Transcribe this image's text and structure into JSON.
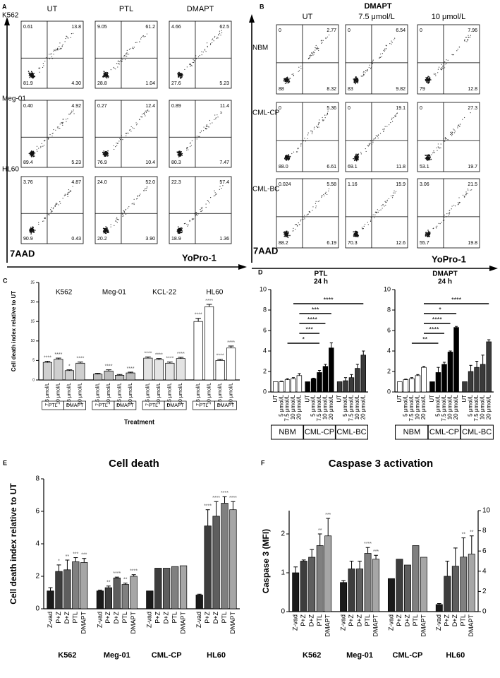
{
  "panel_labels": [
    "A",
    "B",
    "C",
    "D",
    "E",
    "F"
  ],
  "panels": {
    "A": {
      "columns": [
        "UT",
        "PTL",
        "DMAPT"
      ],
      "y_label": "7AAD",
      "x_label": "YoPro-1",
      "rows": [
        {
          "name": "K562",
          "plots": [
            {
              "ul": "0.61",
              "ur": "13.8",
              "ll": "81.9",
              "lr": "4.30"
            },
            {
              "ul": "9.05",
              "ur": "61.2",
              "ll": "28.8",
              "lr": "1.04"
            },
            {
              "ul": "4.66",
              "ur": "62.5",
              "ll": "27.6",
              "lr": "5.23"
            }
          ]
        },
        {
          "name": "Meg-01",
          "plots": [
            {
              "ul": "0.40",
              "ur": "4.92",
              "ll": "89.4",
              "lr": "5.23"
            },
            {
              "ul": "0.27",
              "ur": "12.4",
              "ll": "76.9",
              "lr": "10.4"
            },
            {
              "ul": "0.89",
              "ur": "11.4",
              "ll": "80.3",
              "lr": "7.47"
            }
          ]
        },
        {
          "name": "HL60",
          "plots": [
            {
              "ul": "3.76",
              "ur": "4.87",
              "ll": "90.9",
              "lr": "0.43"
            },
            {
              "ul": "24.0",
              "ur": "52.0",
              "ll": "20.2",
              "lr": "3.90"
            },
            {
              "ul": "22.3",
              "ur": "57.4",
              "ll": "18.9",
              "lr": "1.36"
            }
          ]
        }
      ]
    },
    "B": {
      "title": "DMAPT",
      "columns": [
        "UT",
        "7.5 μmol/L",
        "10 μmol/L"
      ],
      "y_label": "7AAD",
      "x_label": "YoPro-1",
      "rows": [
        {
          "name": "NBM",
          "plots": [
            {
              "ul": "0",
              "ur": "2.77",
              "ll": "88",
              "lr": "8.32"
            },
            {
              "ul": "0",
              "ur": "6.54",
              "ll": "83",
              "lr": "9.82"
            },
            {
              "ul": "0",
              "ur": "7.96",
              "ll": "79",
              "lr": "12.8"
            }
          ]
        },
        {
          "name": "CML-CP",
          "plots": [
            {
              "ul": "0",
              "ur": "5.36",
              "ll": "88.0",
              "lr": "6.61"
            },
            {
              "ul": "0",
              "ur": "19.1",
              "ll": "69.1",
              "lr": "11.8"
            },
            {
              "ul": "0",
              "ur": "27.3",
              "ll": "53.1",
              "lr": "19.7"
            }
          ]
        },
        {
          "name": "CML-BC",
          "plots": [
            {
              "ul": "0.024",
              "ur": "5.58",
              "ll": "88.2",
              "lr": "6.19"
            },
            {
              "ul": "1.16",
              "ur": "15.9",
              "ll": "70.3",
              "lr": "12.6"
            },
            {
              "ul": "3.06",
              "ur": "21.5",
              "ll": "55.7",
              "lr": "19.8"
            }
          ]
        }
      ]
    }
  },
  "chart_data": [
    {
      "type": "bar",
      "ylabel": "Cell death index relative to UT",
      "xlabel": "Treatment",
      "ylim": [
        0,
        25
      ],
      "yticks": [
        0,
        5,
        10,
        15,
        20,
        25
      ],
      "categories": [
        "7.5 μmol/L",
        "10 μmol/L",
        "7.5 μmol/L",
        "10 μmol/L"
      ],
      "subgroups": [
        "PTL",
        "DMAPT"
      ],
      "groups": [
        {
          "name": "K562",
          "color": "#cfcfcf",
          "values": [
            4.5,
            5.3,
            2.4,
            4.3
          ],
          "errors": [
            0.3,
            0.3,
            0.2,
            0.3
          ],
          "significance": [
            "****",
            "****",
            "*",
            "****"
          ]
        },
        {
          "name": "Meg-01",
          "color": "#bdbdbd",
          "values": [
            1.5,
            2.3,
            1.2,
            1.8
          ],
          "errors": [
            0.2,
            0.3,
            0.2,
            0.2
          ],
          "significance": [
            null,
            "****",
            null,
            "****"
          ]
        },
        {
          "name": "KCL-22",
          "color": "#e3e3e3",
          "values": [
            5.6,
            5.2,
            4.3,
            5.5
          ],
          "errors": [
            0.3,
            0.3,
            0.3,
            0.3
          ],
          "significance": [
            "****",
            "****",
            "****",
            "****"
          ]
        },
        {
          "name": "HL60",
          "color": "#ffffff",
          "values": [
            15,
            18.8,
            5,
            8.2
          ],
          "errors": [
            0.8,
            0.6,
            0.3,
            0.5
          ],
          "significance": [
            "****",
            "****",
            "****",
            "****"
          ]
        }
      ]
    },
    {
      "type": "bar",
      "title": "PTL",
      "subtitle": "24 h",
      "ylim": [
        0,
        10
      ],
      "yticks": [
        0,
        2,
        4,
        6,
        8,
        10
      ],
      "categories": [
        "UT",
        "5 μmol/L",
        "7.5 μmol/L",
        "10 μmol/L",
        "20 μmol/L"
      ],
      "comparisons": [
        "****",
        "***",
        "****",
        "***",
        "*"
      ],
      "groups": [
        {
          "name": "NBM",
          "color": "#ffffff",
          "values": [
            1,
            1,
            1.2,
            1.3,
            1.6
          ],
          "errors": [
            0,
            0.05,
            0.1,
            0.1,
            0.2
          ]
        },
        {
          "name": "CML-CP",
          "color": "#000000",
          "values": [
            1,
            1.3,
            1.9,
            2.5,
            4.3
          ],
          "errors": [
            0,
            0.05,
            0.2,
            0.2,
            0.5
          ]
        },
        {
          "name": "CML-BC",
          "color": "#3a3a3a",
          "values": [
            1,
            1.1,
            1.4,
            2.3,
            3.6
          ],
          "errors": [
            0,
            0.3,
            0.3,
            0.4,
            0.4
          ]
        }
      ]
    },
    {
      "type": "bar",
      "title": "DMAPT",
      "subtitle": "24 h",
      "ylim": [
        0,
        10
      ],
      "yticks": [
        0,
        2,
        4,
        6,
        8,
        10
      ],
      "categories": [
        "UT",
        "5 μmol/L",
        "7.5 μmol/L",
        "10 μmol/L",
        "20 μmol/L"
      ],
      "comparisons": [
        "****",
        "*",
        "****",
        "****",
        "**"
      ],
      "groups": [
        {
          "name": "NBM",
          "color": "#ffffff",
          "values": [
            1,
            1.2,
            1.3,
            1.6,
            2.4
          ],
          "errors": [
            0,
            0.05,
            0.1,
            0.1,
            0.1
          ]
        },
        {
          "name": "CML-CP",
          "color": "#000000",
          "values": [
            1,
            1.9,
            2.7,
            3.9,
            6.3
          ],
          "errors": [
            0,
            0.5,
            0.2,
            0.1,
            0.1
          ]
        },
        {
          "name": "CML-BC",
          "color": "#3a3a3a",
          "values": [
            1,
            2,
            2.4,
            2.7,
            4.9
          ],
          "errors": [
            0,
            0.6,
            0.6,
            0.9,
            0.2
          ]
        }
      ]
    },
    {
      "type": "bar",
      "title": "Cell death",
      "ylabel": "Cell death index relative to UT",
      "ylim": [
        0,
        8
      ],
      "yticks": [
        0,
        2,
        4,
        6,
        8
      ],
      "categories": [
        "Z-vad",
        "P+Z",
        "D+Z",
        "PTL",
        "DMAPT"
      ],
      "colors": [
        "#1a1a1a",
        "#3d3d3d",
        "#5e5e5e",
        "#808080",
        "#a6a6a6"
      ],
      "groups": [
        {
          "name": "K562",
          "values": [
            1.1,
            2.3,
            2.4,
            2.9,
            2.85
          ],
          "errors": [
            0.2,
            0.4,
            0.6,
            0.25,
            0.25
          ],
          "significance": [
            null,
            "*",
            "**",
            "***",
            "***"
          ]
        },
        {
          "name": "Meg-01",
          "values": [
            1.1,
            1.3,
            1.9,
            1.5,
            2.0
          ],
          "errors": [
            0.05,
            0.1,
            0.05,
            0.08,
            0.1
          ],
          "significance": [
            null,
            "**",
            "****",
            "**",
            "****"
          ]
        },
        {
          "name": "CML-CP",
          "values": [
            1.1,
            2.5,
            2.5,
            2.6,
            2.65
          ]
        },
        {
          "name": "HL60",
          "values": [
            0.85,
            5.1,
            5.7,
            6.5,
            6.1
          ],
          "errors": [
            0.05,
            1.0,
            0.9,
            0.4,
            0.5
          ],
          "significance": [
            null,
            "****",
            "****",
            "****",
            "****"
          ]
        }
      ]
    },
    {
      "type": "bar",
      "title": "Caspase 3 activation",
      "ylabel": "Caspase 3 (MFI)",
      "ylim": [
        0,
        2.6
      ],
      "yticks": [
        0,
        1,
        2
      ],
      "y2lim": [
        0,
        10
      ],
      "y2ticks": [
        0,
        2,
        4,
        6,
        8,
        10
      ],
      "categories": [
        "Z-vad",
        "P+Z",
        "D+Z",
        "PTL",
        "DMAPT"
      ],
      "colors": [
        "#1a1a1a",
        "#3d3d3d",
        "#5e5e5e",
        "#808080",
        "#a6a6a6"
      ],
      "groups": [
        {
          "name": "K562",
          "values": [
            1.0,
            1.3,
            1.4,
            1.7,
            1.95
          ],
          "errors": [
            0.15,
            0.03,
            0.2,
            0.3,
            0.45
          ],
          "significance": [
            null,
            null,
            null,
            "**",
            "***"
          ]
        },
        {
          "name": "Meg-01",
          "values": [
            0.75,
            1.1,
            1.1,
            1.5,
            1.35
          ],
          "errors": [
            0.05,
            0.2,
            0.2,
            0.15,
            0.1
          ],
          "significance": [
            null,
            null,
            null,
            "****",
            "***"
          ]
        },
        {
          "name": "CML-CP",
          "values": [
            0.85,
            1.35,
            1.2,
            1.7,
            1.4
          ]
        },
        {
          "name": "HL60",
          "axis": "y2",
          "values": [
            0.7,
            3.5,
            4.5,
            5.4,
            5.7
          ],
          "errors": [
            0.1,
            1.5,
            1.8,
            1.9,
            1.8
          ],
          "significance": [
            null,
            null,
            null,
            "**",
            "**"
          ]
        }
      ]
    }
  ]
}
